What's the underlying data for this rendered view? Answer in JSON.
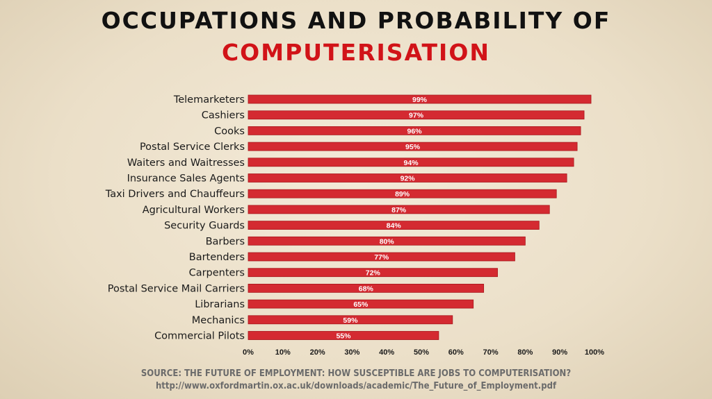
{
  "title": {
    "line1": "OCCUPATIONS AND PROBABILITY OF",
    "line2": "COMPUTERISATION"
  },
  "colors": {
    "bar": "#d42a31",
    "bar_edge": "#a8161c",
    "title_accent": "#d11318",
    "label": "#1a1a1a",
    "source": "#6b6b6b"
  },
  "chart_data": {
    "type": "bar",
    "orientation": "horizontal",
    "categories": [
      "Telemarketers",
      "Cashiers",
      "Cooks",
      "Postal Service Clerks",
      "Waiters and Waitresses",
      "Insurance Sales Agents",
      "Taxi Drivers and Chauffeurs",
      "Agricultural Workers",
      "Security Guards",
      "Barbers",
      "Bartenders",
      "Carpenters",
      "Postal Service Mail Carriers",
      "Librarians",
      "Mechanics",
      "Commercial Pilots"
    ],
    "values": [
      99,
      97,
      96,
      95,
      94,
      92,
      89,
      87,
      84,
      80,
      77,
      72,
      68,
      65,
      59,
      55
    ],
    "data_labels": [
      "99%",
      "97%",
      "96%",
      "95%",
      "94%",
      "92%",
      "89%",
      "87%",
      "84%",
      "80%",
      "77%",
      "72%",
      "68%",
      "65%",
      "59%",
      "55%"
    ],
    "xlim": [
      0,
      100
    ],
    "xticks": [
      0,
      10,
      20,
      30,
      40,
      50,
      60,
      70,
      80,
      90,
      100
    ],
    "xtick_labels": [
      "0%",
      "10%",
      "20%",
      "30%",
      "40%",
      "50%",
      "60%",
      "70%",
      "80%",
      "90%",
      "100%"
    ],
    "grid": false,
    "legend": "none",
    "xlabel": "",
    "ylabel": ""
  },
  "source": {
    "line1": "SOURCE: THE FUTURE OF EMPLOYMENT: HOW SUSCEPTIBLE ARE JOBS TO COMPUTERISATION?",
    "line2": "http://www.oxfordmartin.ox.ac.uk/downloads/academic/The_Future_of_Employment.pdf"
  }
}
